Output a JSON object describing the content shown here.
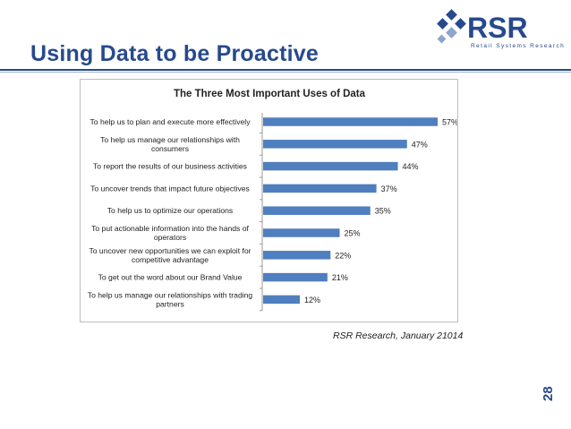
{
  "slide": {
    "title": "Using Data to be Proactive",
    "page_number": "28",
    "source": "RSR Research, January 21014"
  },
  "logo": {
    "wordmark": "RSR",
    "tagline": "Retail Systems Research"
  },
  "colors": {
    "title": "#27498d",
    "bar": "#4f7fbf",
    "axis": "#9a9a9a",
    "text": "#222222"
  },
  "chart_data": {
    "type": "bar",
    "orientation": "horizontal",
    "title": "The Three Most Important Uses of Data",
    "categories": [
      "To help us to plan and execute more effectively",
      "To help us manage our relationships with consumers",
      "To report the results of our business activities",
      "To uncover trends that impact future objectives",
      "To help us to optimize our operations",
      "To put actionable information into the hands of operators",
      "To uncover new opportunities we can exploit for competitive advantage",
      "To get out the word about our Brand Value",
      "To help us manage our relationships with trading partners"
    ],
    "category_lines": [
      [
        "To help us to plan and execute more effectively"
      ],
      [
        "To help us manage our relationships with",
        "consumers"
      ],
      [
        "To report the results of our business activities"
      ],
      [
        "To uncover trends that impact future objectives"
      ],
      [
        "To help us to optimize our operations"
      ],
      [
        "To put actionable information into the hands of",
        "operators"
      ],
      [
        "To uncover new opportunities we can exploit for",
        "competitive advantage"
      ],
      [
        "To get out the word about our Brand Value"
      ],
      [
        "To help us manage our relationships with trading",
        "partners"
      ]
    ],
    "values": [
      57,
      47,
      44,
      37,
      35,
      25,
      22,
      21,
      12
    ],
    "data_labels": [
      "57%",
      "47%",
      "44%",
      "37%",
      "35%",
      "25%",
      "22%",
      "21%",
      "12%"
    ],
    "xlim": [
      0,
      57
    ],
    "unit": "%",
    "grid": false,
    "legend": "none"
  }
}
